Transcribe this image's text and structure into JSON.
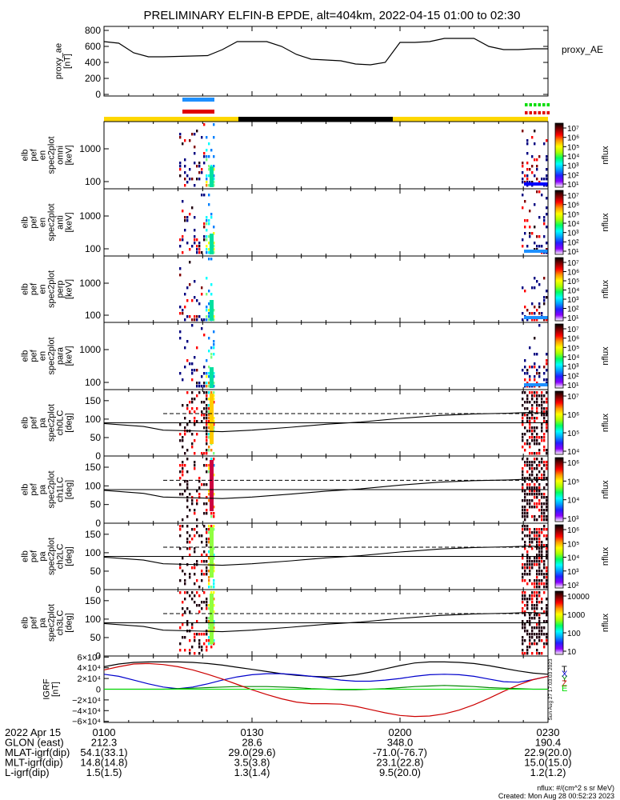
{
  "title": "PRELIMINARY ELFIN-B EPDE, alt=404km, 2022-04-15 01:00 to 02:30",
  "colors": {
    "science_bar": "#ffd700",
    "eclipse_bar": "#000000",
    "marker_blue": "#1e90ff",
    "marker_red": "#e00000",
    "marker_green": "#00dd00",
    "igrf_x": "#0000cc",
    "igrf_y": "#008800",
    "igrf_z": "#cc0000",
    "igrf_t": "#000000",
    "igrf_e": "#00dd00"
  },
  "chart_data": [
    {
      "type": "line",
      "panel": "proxy_ae",
      "ylabel_lines": [
        "proxy_ae",
        "[nT]"
      ],
      "legend": "proxy_AE",
      "yticks": [
        "800",
        "600",
        "400",
        "200",
        "0"
      ],
      "ylim": [
        -20,
        850
      ],
      "xlim": [
        0,
        90
      ],
      "x": [
        0,
        3,
        6,
        9,
        12,
        15,
        18,
        21,
        24,
        27,
        30,
        33,
        36,
        39,
        42,
        45,
        48,
        51,
        54,
        57,
        60,
        63,
        66,
        69,
        72,
        75,
        78,
        81,
        84,
        87,
        90
      ],
      "values": [
        660,
        640,
        520,
        470,
        470,
        475,
        480,
        485,
        560,
        660,
        660,
        660,
        600,
        500,
        440,
        430,
        420,
        380,
        370,
        400,
        650,
        650,
        660,
        700,
        700,
        700,
        600,
        560,
        560,
        570,
        570
      ]
    },
    {
      "type": "heatmap",
      "panel": "omni",
      "ylabel_lines": [
        "elb",
        "pef",
        "en",
        "spec2plot",
        "omni",
        "[keV]"
      ],
      "yticks": [
        "1000",
        "100"
      ],
      "colorbar_ticks": [
        "10⁷",
        "10⁶",
        "10⁵",
        "10⁴",
        "10³",
        "10²",
        "10¹"
      ],
      "colorbar_label": "nflux"
    },
    {
      "type": "heatmap",
      "panel": "anti",
      "ylabel_lines": [
        "elb",
        "pef",
        "en",
        "spec2plot",
        "anti",
        "[keV]"
      ],
      "yticks": [
        "1000",
        "100"
      ],
      "colorbar_ticks": [
        "10⁷",
        "10⁶",
        "10⁵",
        "10⁴",
        "10³",
        "10²",
        "10¹"
      ],
      "colorbar_label": "nflux"
    },
    {
      "type": "heatmap",
      "panel": "perp",
      "ylabel_lines": [
        "elb",
        "pef",
        "en",
        "spec2plot",
        "perp",
        "[keV]"
      ],
      "yticks": [
        "1000",
        "100"
      ],
      "colorbar_ticks": [
        "10⁷",
        "10⁶",
        "10⁵",
        "10⁴",
        "10³",
        "10²",
        "10¹"
      ],
      "colorbar_label": "nflux"
    },
    {
      "type": "heatmap",
      "panel": "para",
      "ylabel_lines": [
        "elb",
        "pef",
        "en",
        "spec2plot",
        "para",
        "[keV]"
      ],
      "yticks": [
        "1000",
        "100"
      ],
      "colorbar_ticks": [
        "10⁷",
        "10⁶",
        "10⁵",
        "10⁴",
        "10³",
        "10²",
        "10¹"
      ],
      "colorbar_label": "nflux"
    },
    {
      "type": "heatmap",
      "panel": "ch0LC",
      "ylabel_lines": [
        "elb",
        "pef",
        "pa",
        "spec2plot",
        "ch0LC",
        "[deg]"
      ],
      "yticks": [
        "150",
        "100",
        "50",
        "0"
      ],
      "colorbar_ticks": [
        "10⁷",
        "10⁶",
        "10⁵",
        "10⁴"
      ],
      "colorbar_label": "nflux"
    },
    {
      "type": "heatmap",
      "panel": "ch1LC",
      "ylabel_lines": [
        "elb",
        "pef",
        "pa",
        "spec2plot",
        "ch1LC",
        "[deg]"
      ],
      "yticks": [
        "150",
        "100",
        "50",
        "0"
      ],
      "colorbar_ticks": [
        "10⁶",
        "10⁵",
        "10⁴",
        "10³"
      ],
      "colorbar_label": "nflux"
    },
    {
      "type": "heatmap",
      "panel": "ch2LC",
      "ylabel_lines": [
        "elb",
        "pef",
        "pa",
        "spec2plot",
        "ch2LC",
        "[deg]"
      ],
      "yticks": [
        "150",
        "100",
        "50",
        "0"
      ],
      "colorbar_ticks": [
        "10⁶",
        "10⁵",
        "10⁴",
        "10³",
        "10²"
      ],
      "colorbar_label": "nflux"
    },
    {
      "type": "heatmap",
      "panel": "ch3LC",
      "ylabel_lines": [
        "elb",
        "pef",
        "pa",
        "spec2plot",
        "ch3LC",
        "[deg]"
      ],
      "yticks": [
        "150",
        "100",
        "50",
        "0"
      ],
      "colorbar_ticks": [
        "10000",
        "1000",
        "100",
        "10"
      ],
      "colorbar_label": "nflux"
    },
    {
      "type": "line",
      "panel": "igrf",
      "ylabel_lines": [
        "IGRF",
        "[nT]"
      ],
      "yticks": [
        "6×10⁴",
        "4×10⁴",
        "2×10⁴",
        "0",
        "−2×10⁴",
        "−4×10⁴",
        "−6×10⁴"
      ],
      "ylim": [
        -62000,
        62000
      ],
      "legend_letters": [
        "T",
        "X",
        "Y",
        "Z",
        "E"
      ],
      "side_note": "Sun Aug 27 17:03:03 2023",
      "x": [
        0,
        3,
        6,
        9,
        12,
        15,
        18,
        21,
        24,
        27,
        30,
        33,
        36,
        39,
        42,
        45,
        48,
        51,
        54,
        57,
        60,
        63,
        66,
        69,
        72,
        75,
        78,
        81,
        84,
        87,
        90
      ],
      "series": [
        {
          "name": "T",
          "values": [
            42000,
            47000,
            50000,
            51000,
            51000,
            51000,
            50000,
            48000,
            45000,
            41000,
            37000,
            33000,
            29000,
            26000,
            24000,
            23000,
            24000,
            27000,
            32000,
            38000,
            44000,
            49000,
            51000,
            51000,
            50000,
            48000,
            44000,
            39000,
            34000,
            30000,
            28000
          ]
        },
        {
          "name": "X",
          "values": [
            28000,
            24000,
            17000,
            10000,
            4000,
            1000,
            4000,
            10000,
            17000,
            23000,
            27000,
            29000,
            29000,
            27000,
            24000,
            21000,
            17000,
            15000,
            15000,
            17000,
            20000,
            24000,
            27000,
            28000,
            27000,
            24000,
            19000,
            14000,
            13000,
            18000,
            24000
          ]
        },
        {
          "name": "Y",
          "values": [
            0,
            0,
            0,
            0,
            0,
            1000,
            2000,
            3000,
            4000,
            5000,
            5000,
            5000,
            4000,
            3000,
            1000,
            0,
            -1000,
            -1000,
            0,
            1000,
            3000,
            5000,
            6000,
            7000,
            6000,
            5000,
            3000,
            2000,
            1000,
            0,
            0
          ]
        },
        {
          "name": "Z",
          "values": [
            36000,
            42000,
            47000,
            48000,
            46000,
            42000,
            36000,
            28000,
            19000,
            9000,
            -1000,
            -10000,
            -18000,
            -24000,
            -27000,
            -27000,
            -28000,
            -32000,
            -38000,
            -44000,
            -49000,
            -51000,
            -50000,
            -46000,
            -39000,
            -29000,
            -17000,
            -4000,
            8000,
            18000,
            24000
          ]
        }
      ]
    }
  ],
  "x_axis": {
    "ticks": [
      "0100",
      "0130",
      "0200",
      "0230"
    ],
    "row_labels": [
      "2022 Apr 15",
      "GLON (east)",
      "MLAT-igrf(dip)",
      "MLT-igrf(dip)",
      "L-igrf(dip)"
    ],
    "rows": [
      [
        "212.3",
        "28.6",
        "348.0",
        "190.4"
      ],
      [
        "54.1(33.1)",
        "29.0(29.6)",
        "-71.0(-76.7)",
        "22.9(20.0)"
      ],
      [
        "14.8(14.8)",
        "3.5(3.8)",
        "23.1(22.8)",
        "15.0(15.0)"
      ],
      [
        "1.5(1.5)",
        "1.3(1.4)",
        "9.5(20.0)",
        "1.2(1.2)"
      ]
    ]
  },
  "footer": {
    "units": "nflux: #/(cm^2 s sr MeV)",
    "created": "Created: Mon Aug 28 00:52:23 2023"
  }
}
